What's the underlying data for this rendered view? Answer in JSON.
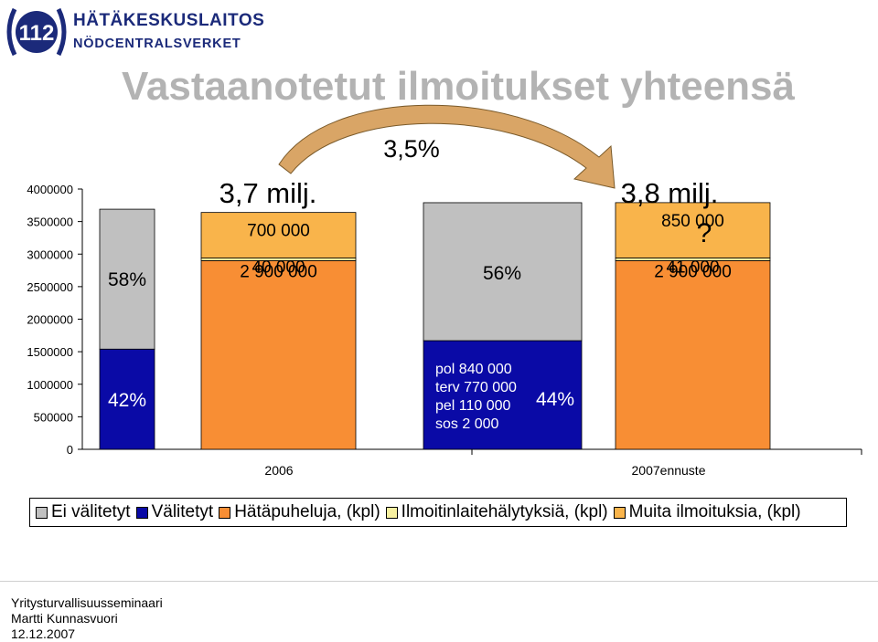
{
  "header": {
    "logo_number": "112",
    "logo_line1": "HÄTÄKESKUSLAITOS",
    "logo_line2": "NÖDCENTRALSVERKET",
    "title": "Vastaanotetut ilmoitukset yhteensä"
  },
  "colors": {
    "ei_valitetyt": "#c0c0c0",
    "valitetyt": "#0a0aa6",
    "hatapuheluja": "#f88e34",
    "ilmoitinlaite": "#f7f0a0",
    "muita": "#f9b44b",
    "title": "#b3b3b3",
    "arrow": "#d9a566",
    "logo": "#1b2a7a"
  },
  "chart_data": {
    "type": "bar",
    "title": "Vastaanotetut ilmoitukset yhteensä",
    "ylim": [
      0,
      4000000
    ],
    "yticks": [
      0,
      500000,
      1000000,
      1500000,
      2000000,
      2500000,
      3000000,
      3500000,
      4000000
    ],
    "ytick_labels": [
      "0",
      "500000",
      "1000000",
      "1500000",
      "2000000",
      "2500000",
      "3000000",
      "3500000",
      "4000000"
    ],
    "categories": [
      "2006",
      "2007ennuste"
    ],
    "legend": [
      "Ei välitetyt",
      "Välitetyt",
      "Hätäpuheluja, (kpl)",
      "Ilmoitinlaitehälytyksiä, (kpl)",
      "Muita ilmoituksia, (kpl)"
    ],
    "groups": [
      {
        "category": "2006",
        "share_bar": {
          "valitetyt": 1540000,
          "ei_valitetyt": 2150000,
          "valitetyt_label": "42%",
          "ei_valitetyt_label": "58%"
        },
        "stack_bar": {
          "hatapuheluja": 2900000,
          "ilmoitinlaite": 40000,
          "muita": 700000,
          "hatapuheluja_label": "2 900 000",
          "ilmoitinlaite_label": "40 000",
          "muita_label": "700 000"
        },
        "total_label": "3,7 milj."
      },
      {
        "category": "2007ennuste",
        "share_bar": {
          "valitetyt": 1670000,
          "ei_valitetyt": 2120000,
          "valitetyt_label": "44%",
          "ei_valitetyt_label": "56%"
        },
        "stack_bar": {
          "hatapuheluja": 2900000,
          "ilmoitinlaite": 41000,
          "muita": 850000,
          "hatapuheluja_label": "2 900 000",
          "ilmoitinlaite_label": "41 000",
          "muita_label": "850 000"
        },
        "total_label": "3,8 milj."
      }
    ],
    "valitetyt_breakdown": [
      "pol 840 000",
      "terv 770 000",
      "pel 110 000",
      "sos 2 000"
    ],
    "growth_label": "3,5%",
    "question_mark": "?"
  },
  "footer": {
    "line1": "Yritysturvallisuusseminaari",
    "line2": "Martti Kunnasvuori",
    "line3": "12.12.2007"
  }
}
